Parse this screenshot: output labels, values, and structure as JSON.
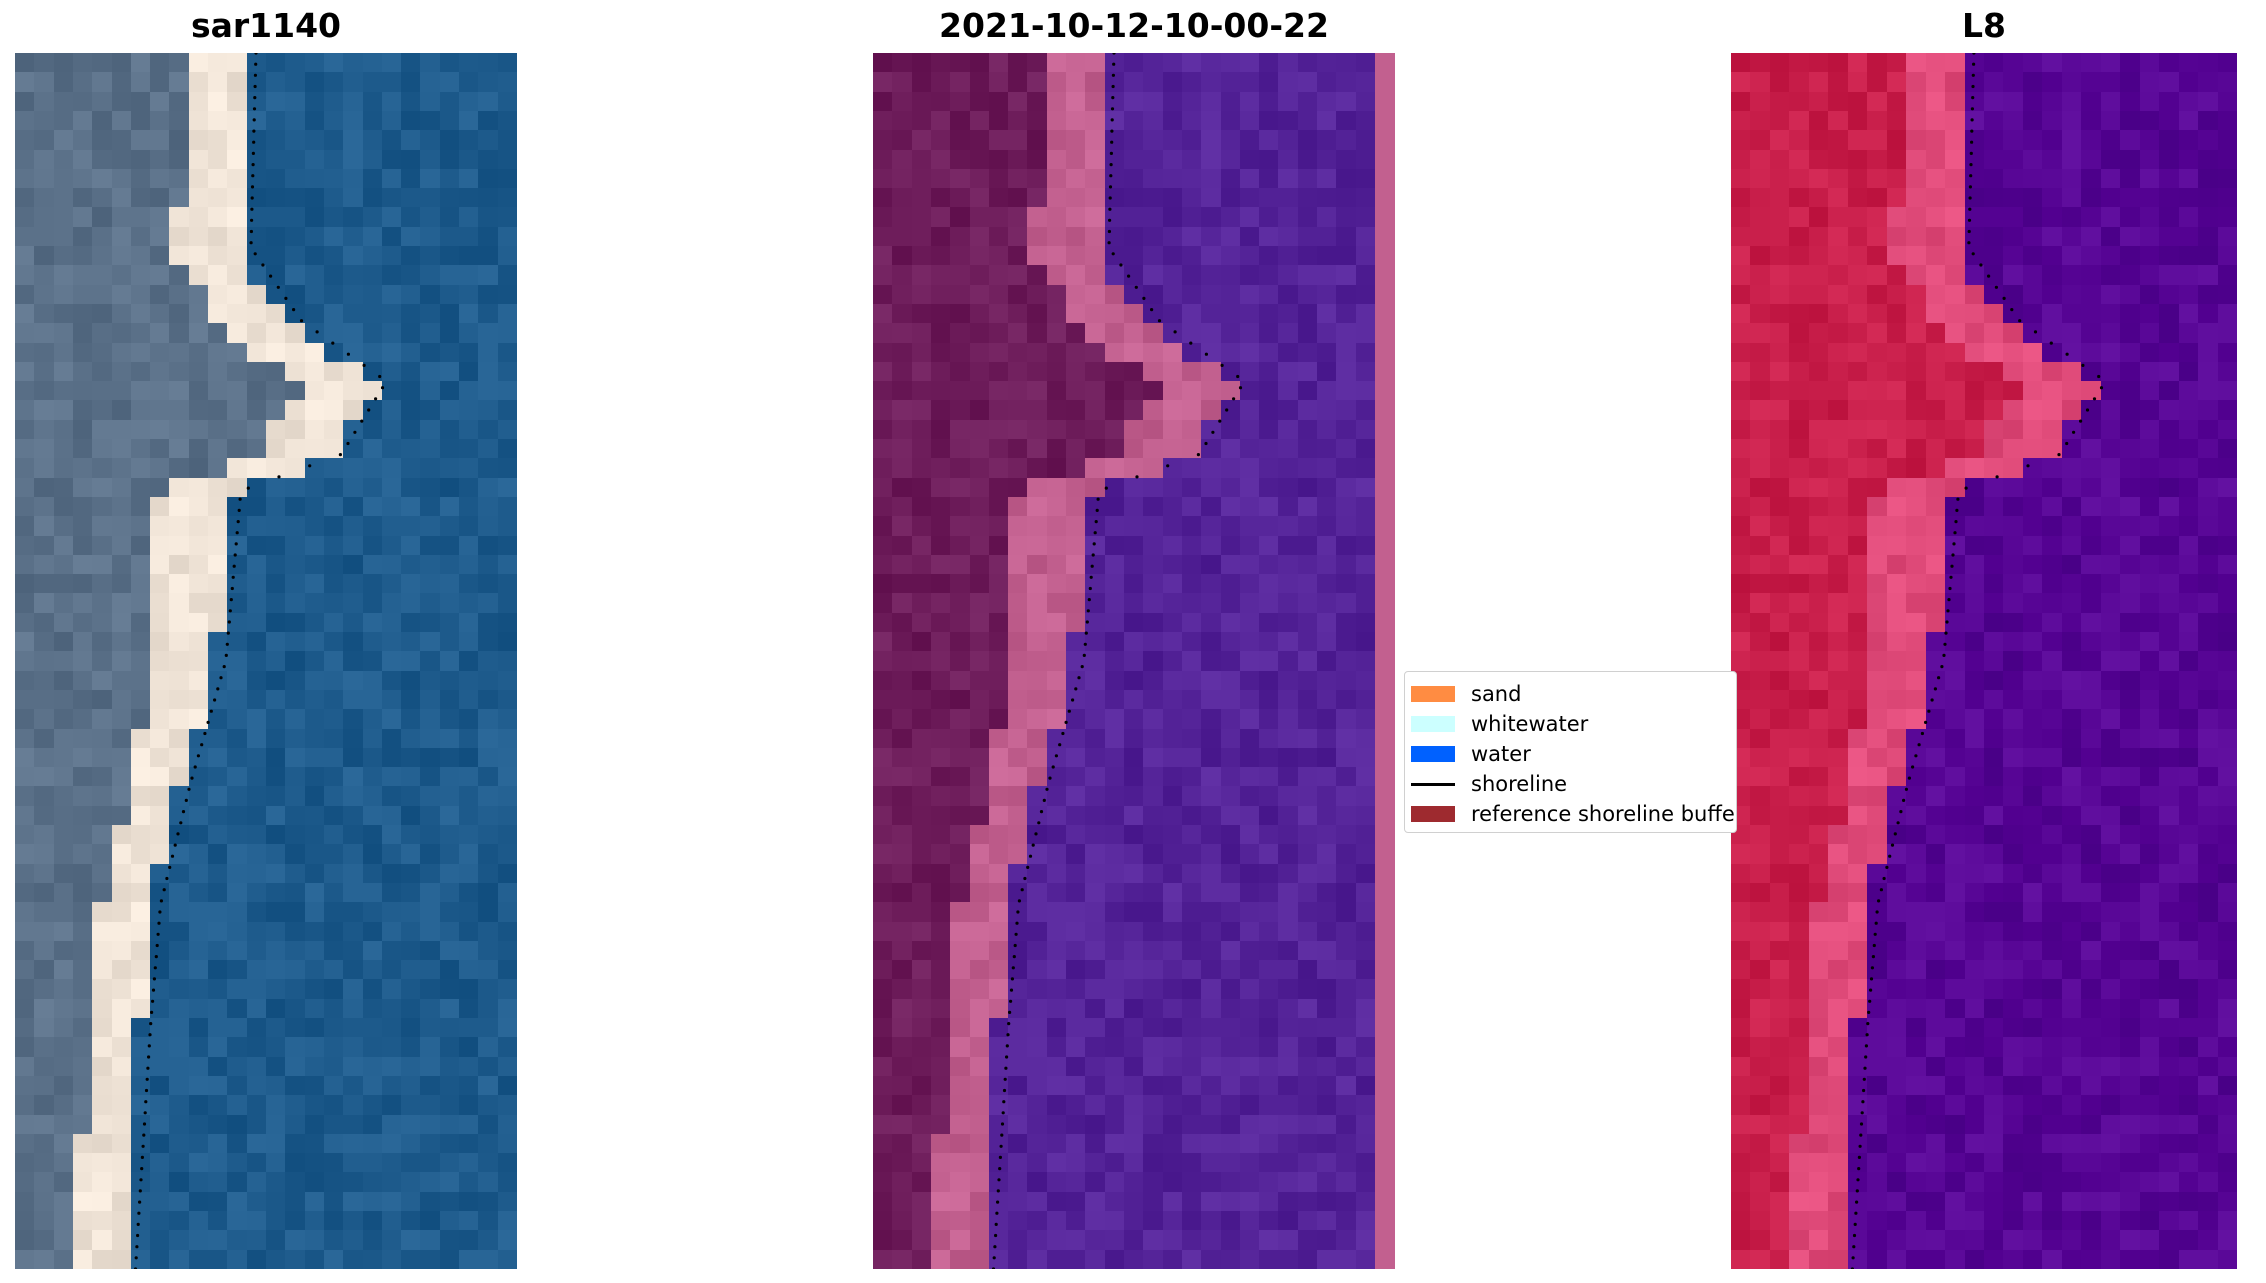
{
  "panels": [
    {
      "title": "sar1140",
      "style": "rgb"
    },
    {
      "title": "2021-10-12-10-00-22",
      "style": "classified"
    },
    {
      "title": "L8",
      "style": "falsecolor"
    }
  ],
  "legend": {
    "items": [
      {
        "label": "sand",
        "kind": "patch",
        "color": "#ff8c42"
      },
      {
        "label": "whitewater",
        "kind": "patch",
        "color": "#ccffff"
      },
      {
        "label": "water",
        "kind": "patch",
        "color": "#0061ff"
      },
      {
        "label": "shoreline",
        "kind": "line",
        "color": "#000000"
      },
      {
        "label": "reference shoreline buffer",
        "kind": "patch",
        "color": "#9e2a2f"
      }
    ]
  },
  "colors": {
    "rgb_water": "#1e5b8c",
    "rgb_sand": "#efe3d6",
    "rgb_land": "#5a7088",
    "class_water": "#542398",
    "class_sand": "#c2608f",
    "class_land": "#6d1c5a",
    "false_water": "#560494",
    "false_sand": "#e04b7a",
    "false_land": "#c81e4a"
  }
}
